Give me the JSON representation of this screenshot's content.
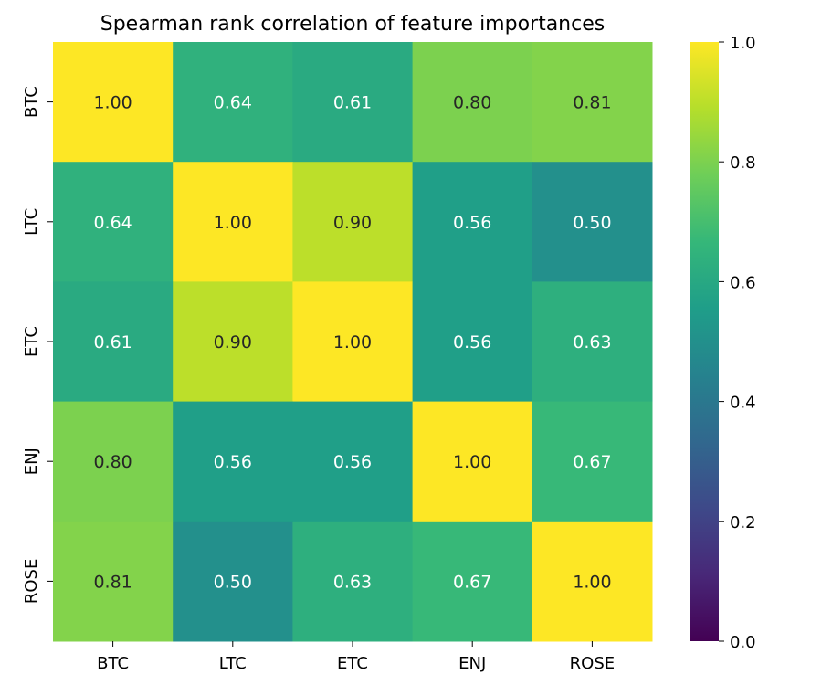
{
  "chart_data": {
    "type": "heatmap",
    "title": "Spearman rank correlation of feature importances",
    "xlabel": "",
    "ylabel": "",
    "rows": [
      "BTC",
      "LTC",
      "ETC",
      "ENJ",
      "ROSE"
    ],
    "columns": [
      "BTC",
      "LTC",
      "ETC",
      "ENJ",
      "ROSE"
    ],
    "values": [
      [
        1.0,
        0.64,
        0.61,
        0.8,
        0.81
      ],
      [
        0.64,
        1.0,
        0.9,
        0.56,
        0.5
      ],
      [
        0.61,
        0.9,
        1.0,
        0.56,
        0.63
      ],
      [
        0.8,
        0.56,
        0.56,
        1.0,
        0.67
      ],
      [
        0.81,
        0.5,
        0.63,
        0.67,
        1.0
      ]
    ],
    "value_format": "0.00",
    "colorbar": {
      "range": [
        0.0,
        1.0
      ],
      "ticks": [
        0.0,
        0.2,
        0.4,
        0.6,
        0.8,
        1.0
      ],
      "tick_labels": [
        "0.0",
        "0.2",
        "0.4",
        "0.6",
        "0.8",
        "1.0"
      ],
      "colormap": "viridis"
    },
    "colors": {
      "viridis_stops": [
        "#440154",
        "#482878",
        "#3e4989",
        "#31688e",
        "#26828e",
        "#1f9e89",
        "#35b779",
        "#6ece58",
        "#b5de2b",
        "#fde725"
      ],
      "text_dark": "#262626",
      "text_light": "#ffffff",
      "axis": "#000000"
    }
  }
}
